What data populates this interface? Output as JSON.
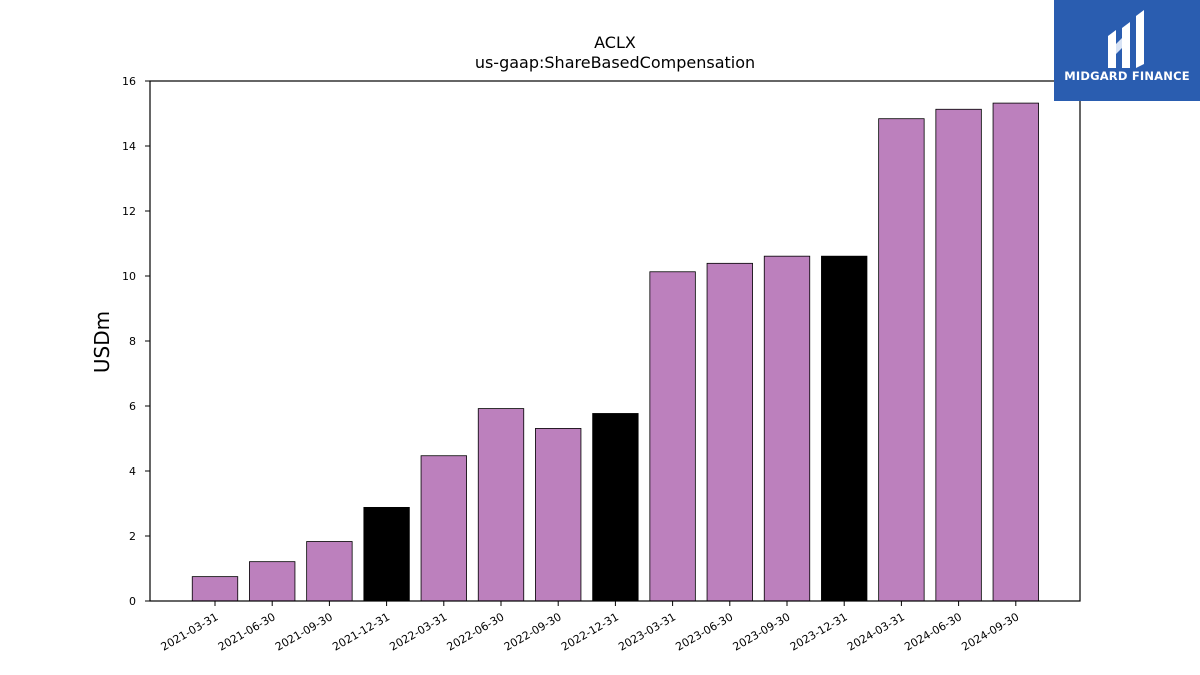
{
  "chart_data": {
    "type": "bar",
    "title": "ACLX",
    "subtitle": "us-gaap:ShareBasedCompensation",
    "xlabel": "",
    "ylabel": "USDm",
    "ylim": [
      0,
      16
    ],
    "yticks": [
      0,
      2,
      4,
      6,
      8,
      10,
      12,
      14,
      16
    ],
    "grid": false,
    "categories": [
      "2021-03-31",
      "2021-06-30",
      "2021-09-30",
      "2021-12-31",
      "2022-03-31",
      "2022-06-30",
      "2022-09-30",
      "2022-12-31",
      "2023-03-31",
      "2023-06-30",
      "2023-09-30",
      "2023-12-31",
      "2024-03-31",
      "2024-06-30",
      "2024-09-30"
    ],
    "values": [
      0.75,
      1.21,
      1.83,
      2.88,
      4.47,
      5.92,
      5.31,
      5.77,
      10.13,
      10.39,
      10.61,
      10.61,
      14.84,
      15.13,
      15.32
    ],
    "bar_colors": [
      "#bc80bd",
      "#bc80bd",
      "#bc80bd",
      "#000000",
      "#bc80bd",
      "#bc80bd",
      "#bc80bd",
      "#000000",
      "#bc80bd",
      "#bc80bd",
      "#bc80bd",
      "#000000",
      "#bc80bd",
      "#bc80bd",
      "#bc80bd"
    ]
  },
  "logo": {
    "text": "MIDGARD FINANCE",
    "icon": "midgard-logo-icon",
    "background": "#2a5db0"
  }
}
